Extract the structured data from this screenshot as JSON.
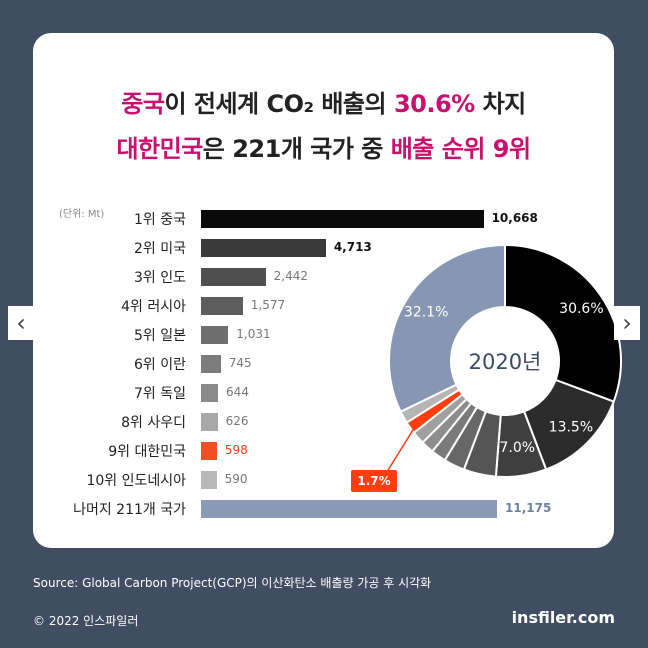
{
  "title": {
    "line1": {
      "a": "중국",
      "b": "이 전세계 CO₂ 배출의 ",
      "c": "30.6%",
      "d": " 차지"
    },
    "line2": {
      "a": "대한민국",
      "b": "은 221개 국가 중 ",
      "c": "배출 순위 9위"
    }
  },
  "chart_data": [
    {
      "type": "bar",
      "orientation": "horizontal",
      "ylabel": "(단위: Mt)",
      "categories": [
        "1위 중국",
        "2위 미국",
        "3위 인도",
        "4위 러시아",
        "5위 일본",
        "6위 이란",
        "7위 독일",
        "8위 사우디",
        "9위 대한민국",
        "10위 인도네시아",
        "나머지 211개 국가"
      ],
      "values": [
        10668,
        4713,
        2442,
        1577,
        1031,
        745,
        644,
        626,
        598,
        590,
        11175
      ],
      "value_labels": [
        "10,668",
        "4,713",
        "2,442",
        "1,577",
        "1,031",
        "745",
        "644",
        "626",
        "598",
        "590",
        "11,175"
      ],
      "colors": [
        "#0a0a0a",
        "#3a3a3a",
        "#4f4f4f",
        "#5e5e5e",
        "#6e6e6e",
        "#7c7c7c",
        "#8a8a8a",
        "#a8a8a8",
        "#f04e23",
        "#b9b9b9",
        "#8a9bb8"
      ]
    },
    {
      "type": "pie",
      "center_label": "2020년",
      "slices": [
        {
          "name": "1위 중국",
          "value": 30.6,
          "label": "30.6%",
          "color": "#000000"
        },
        {
          "name": "2위 미국",
          "value": 13.5,
          "label": "13.5%",
          "color": "#2b2b2b"
        },
        {
          "name": "3위 인도",
          "value": 7.0,
          "label": "7.0%",
          "color": "#3f3f3f"
        },
        {
          "name": "4위 러시아",
          "value": 4.5,
          "label": "",
          "color": "#555555"
        },
        {
          "name": "5위 일본",
          "value": 2.9,
          "label": "",
          "color": "#676767"
        },
        {
          "name": "6위 이란",
          "value": 2.1,
          "label": "",
          "color": "#7a7a7a"
        },
        {
          "name": "7위 독일",
          "value": 1.8,
          "label": "",
          "color": "#8d8d8d"
        },
        {
          "name": "8위 사우디",
          "value": 1.8,
          "label": "",
          "color": "#a0a0a0"
        },
        {
          "name": "9위 대한민국",
          "value": 1.7,
          "label": "1.7%",
          "color": "#ff3d0f"
        },
        {
          "name": "10위 인도네시아",
          "value": 1.7,
          "label": "",
          "color": "#b5b5b5"
        },
        {
          "name": "나머지 211개 국가",
          "value": 32.1,
          "label": "32.1%",
          "color": "#8797b3"
        }
      ]
    }
  ],
  "footer": {
    "source": "Source: Global Carbon Project(GCP)의 이산화탄소 배출량 가공 후 시각화",
    "copyright": "© 2022 인스파일러",
    "brand": "insfiler.com"
  },
  "nav": {
    "prev": "‹",
    "next": "›"
  }
}
